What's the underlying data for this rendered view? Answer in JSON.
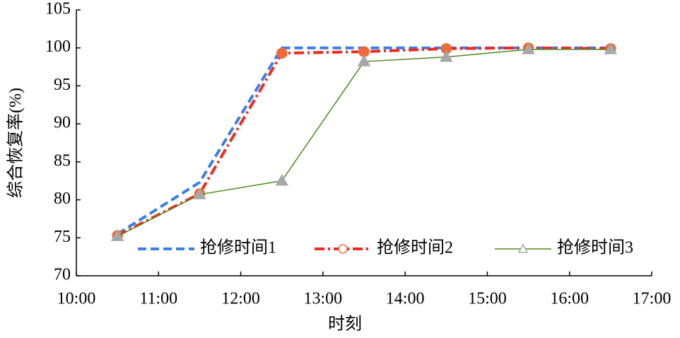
{
  "chart_data": {
    "type": "line",
    "xlabel": "时刻",
    "ylabel": "综合恢复率(%)",
    "x": [
      10.5,
      11.5,
      12.5,
      13.5,
      14.5,
      15.5,
      16.5
    ],
    "xlim": [
      10,
      17
    ],
    "xticks": [
      {
        "value": 10,
        "label": "10:00"
      },
      {
        "value": 11,
        "label": "11:00"
      },
      {
        "value": 12,
        "label": "12:00"
      },
      {
        "value": 13,
        "label": "13:00"
      },
      {
        "value": 14,
        "label": "14:00"
      },
      {
        "value": 15,
        "label": "15:00"
      },
      {
        "value": 16,
        "label": "16:00"
      },
      {
        "value": 17,
        "label": "17:00"
      }
    ],
    "ylim": [
      70,
      105
    ],
    "yticks": [
      70,
      75,
      80,
      85,
      90,
      95,
      100,
      105
    ],
    "legend": "bottom",
    "series": [
      {
        "name": "抢修时间1",
        "color": "#3a7ee8",
        "dash": "12,6",
        "width": 4,
        "marker": "none",
        "values": [
          75.5,
          82.3,
          100,
          100,
          100,
          100,
          100
        ]
      },
      {
        "name": "抢修时间2",
        "color": "#ee2a1f",
        "dash": "14,5,3,5",
        "width": 4,
        "marker": "circle",
        "marker_color": "#ef6a3a",
        "values": [
          75.3,
          80.8,
          99.3,
          99.5,
          99.9,
          100,
          99.9
        ]
      },
      {
        "name": "抢修时间3",
        "color": "#4a8a1c",
        "dash": "none",
        "width": 1.5,
        "marker": "triangle",
        "marker_color": "#a8a8a8",
        "values": [
          75.2,
          80.7,
          82.5,
          98.2,
          98.8,
          99.8,
          99.8
        ]
      }
    ]
  }
}
